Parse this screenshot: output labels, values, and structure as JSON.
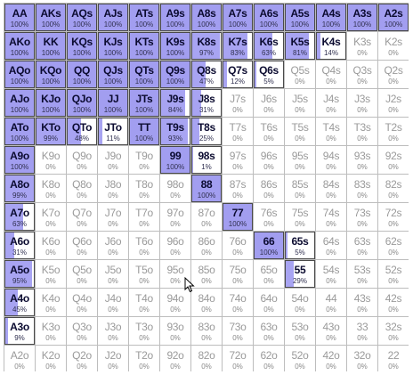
{
  "grid": {
    "rows": [
      [
        "AA|100",
        "AKs|100",
        "AQs|100",
        "AJs|100",
        "ATs|100",
        "A9s|100",
        "A8s|100",
        "A7s|100",
        "A6s|100",
        "A5s|100",
        "A4s|100",
        "A3s|100",
        "A2s|100"
      ],
      [
        "AKo|100",
        "KK|100",
        "KQs|100",
        "KJs|100",
        "KTs|100",
        "K9s|100",
        "K8s|97",
        "K7s|83",
        "K6s|63",
        "K5s|81",
        "K4s|14",
        "K3s|0",
        "K2s|0"
      ],
      [
        "AQo|100",
        "KQo|100",
        "QQ|100",
        "QJs|100",
        "QTs|100",
        "Q9s|100",
        "Q8s|47",
        "Q7s|12",
        "Q6s|5",
        "Q5s|0",
        "Q4s|0",
        "Q3s|0",
        "Q2s|0"
      ],
      [
        "AJo|100",
        "KJo|100",
        "QJo|100",
        "JJ|100",
        "JTs|100",
        "J9s|84",
        "J8s|31",
        "J7s|0",
        "J6s|0",
        "J5s|0",
        "J4s|0",
        "J3s|0",
        "J2s|0"
      ],
      [
        "ATo|100",
        "KTo|99",
        "QTo|48",
        "JTo|11",
        "TT|100",
        "T9s|93",
        "T8s|25",
        "T7s|0",
        "T6s|0",
        "T5s|0",
        "T4s|0",
        "T3s|0",
        "T2s|0"
      ],
      [
        "A9o|100",
        "K9o|0",
        "Q9o|0",
        "J9o|0",
        "T9o|0",
        "99|100",
        "98s|1",
        "97s|0",
        "96s|0",
        "95s|0",
        "94s|0",
        "93s|0",
        "92s|0"
      ],
      [
        "A8o|99",
        "K8o|0",
        "Q8o|0",
        "J8o|0",
        "T8o|0",
        "98o|0",
        "88|100",
        "87s|0",
        "86s|0",
        "85s|0",
        "84s|0",
        "83s|0",
        "82s|0"
      ],
      [
        "A7o|63",
        "K7o|0",
        "Q7o|0",
        "J7o|0",
        "T7o|0",
        "97o|0",
        "87o|0",
        "77|100",
        "76s|0",
        "75s|0",
        "74s|0",
        "73s|0",
        "72s|0"
      ],
      [
        "A6o|31",
        "K6o|0",
        "Q6o|0",
        "J6o|0",
        "T6o|0",
        "96o|0",
        "86o|0",
        "76o|0",
        "66|100",
        "65s|5",
        "64s|0",
        "63s|0",
        "62s|0"
      ],
      [
        "A5o|95",
        "K5o|0",
        "Q5o|0",
        "J5o|0",
        "T5o|0",
        "95o|0",
        "85o|0",
        "75o|0",
        "65o|0",
        "55|29",
        "54s|0",
        "53s|0",
        "52s|0"
      ],
      [
        "A4o|45",
        "K4o|0",
        "Q4o|0",
        "J4o|0",
        "T4o|0",
        "94o|0",
        "84o|0",
        "74o|0",
        "64o|0",
        "54o|0",
        "44|0",
        "43s|0",
        "42s|0"
      ],
      [
        "A3o|9",
        "K3o|0",
        "Q3o|0",
        "J3o|0",
        "T3o|0",
        "93o|0",
        "83o|0",
        "73o|0",
        "63o|0",
        "53o|0",
        "43o|0",
        "33|0",
        "32s|0"
      ],
      [
        "A2o|0",
        "K2o|0",
        "Q2o|0",
        "J2o|0",
        "T2o|0",
        "92o|0",
        "82o|0",
        "72o|0",
        "62o|0",
        "52o|0",
        "42o|0",
        "32o|0",
        "22|0"
      ]
    ],
    "pct_suffix": "%"
  },
  "colors": {
    "fill": "#a8a4f2",
    "border_active": "#4a4a4a",
    "grid_line": "#bdbdbd"
  },
  "cursor": {
    "icon": "mouse-pointer-icon"
  }
}
